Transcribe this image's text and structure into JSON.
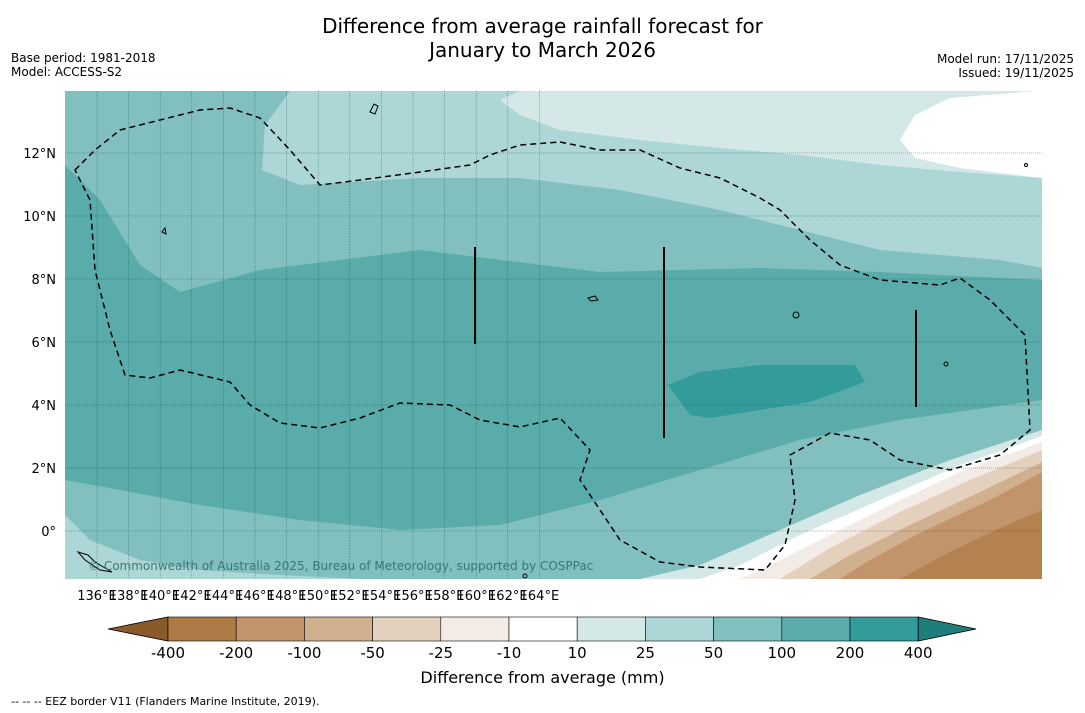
{
  "title_line1": "Difference from average rainfall forecast for",
  "title_line2": "January to March 2026",
  "base_period": "Base period: 1981-2018",
  "model": "Model: ACCESS-S2",
  "model_run": "Model run: 17/11/2025",
  "issued": "Issued: 19/11/2025",
  "copyright": "© Commonwealth of Australia 2025, Bureau of Meteorology, supported by COSPPac",
  "colorbar": {
    "label": "Difference from average (mm)",
    "ticks": [
      "-400",
      "-200",
      "-100",
      "-50",
      "-25",
      "-10",
      "10",
      "25",
      "50",
      "100",
      "200",
      "400"
    ],
    "colors": [
      "#8a5a2b",
      "#ad7a45",
      "#c1946b",
      "#d1b08f",
      "#e3d0bd",
      "#f2ebe6",
      "#ffffff",
      "#d4e8e7",
      "#add7d6",
      "#82c0bf",
      "#5aacab",
      "#339c9a",
      "#1f7e7c"
    ]
  },
  "footnote": "-- -- -- EEZ border V11 (Flanders Marine Institute, 2019).",
  "axes": {
    "lon_ticks": [
      "136°E",
      "138°E",
      "140°E",
      "142°E",
      "144°E",
      "146°E",
      "148°E",
      "150°E",
      "152°E",
      "154°E",
      "156°E",
      "158°E",
      "160°E",
      "162°E",
      "164°E"
    ],
    "lat_ticks": [
      "12°N",
      "10°N",
      "8°N",
      "6°N",
      "4°N",
      "2°N",
      "0°"
    ]
  }
}
